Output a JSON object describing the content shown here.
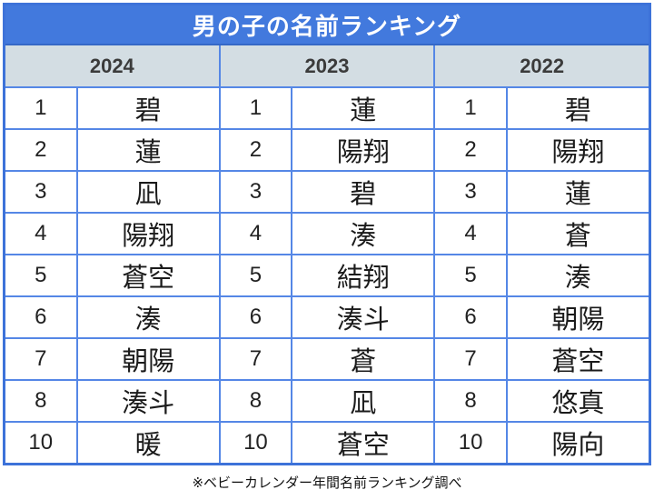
{
  "title": "男の子の名前ランキング",
  "footer": "※ベビーカレンダー年間名前ランキング調べ",
  "colors": {
    "title_bg": "#4279dd",
    "grid_line": "#5587e6",
    "outer_border": "#3d72d9",
    "header_bg": "#d3dde3",
    "title_text": "#ffffff",
    "year_text": "#3b3b3b",
    "name_text": "#1b1b1b"
  },
  "columns": [
    {
      "year": "2024",
      "rows": [
        {
          "rank": "1",
          "name": "碧"
        },
        {
          "rank": "2",
          "name": "蓮"
        },
        {
          "rank": "3",
          "name": "凪"
        },
        {
          "rank": "4",
          "name": "陽翔"
        },
        {
          "rank": "5",
          "name": "蒼空"
        },
        {
          "rank": "6",
          "name": "湊"
        },
        {
          "rank": "7",
          "name": "朝陽"
        },
        {
          "rank": "8",
          "name": "湊斗"
        },
        {
          "rank": "10",
          "name": "暖"
        }
      ]
    },
    {
      "year": "2023",
      "rows": [
        {
          "rank": "1",
          "name": "蓮"
        },
        {
          "rank": "2",
          "name": "陽翔"
        },
        {
          "rank": "3",
          "name": "碧"
        },
        {
          "rank": "4",
          "name": "湊"
        },
        {
          "rank": "5",
          "name": "結翔"
        },
        {
          "rank": "6",
          "name": "湊斗"
        },
        {
          "rank": "7",
          "name": "蒼"
        },
        {
          "rank": "8",
          "name": "凪"
        },
        {
          "rank": "10",
          "name": "蒼空"
        }
      ]
    },
    {
      "year": "2022",
      "rows": [
        {
          "rank": "1",
          "name": "碧"
        },
        {
          "rank": "2",
          "name": "陽翔"
        },
        {
          "rank": "3",
          "name": "蓮"
        },
        {
          "rank": "4",
          "name": "蒼"
        },
        {
          "rank": "5",
          "name": "湊"
        },
        {
          "rank": "6",
          "name": "朝陽"
        },
        {
          "rank": "7",
          "name": "蒼空"
        },
        {
          "rank": "8",
          "name": "悠真"
        },
        {
          "rank": "10",
          "name": "陽向"
        }
      ]
    }
  ],
  "chart_data": {
    "type": "table",
    "title": "男の子の名前ランキング",
    "columns": [
      "2024",
      "2023",
      "2022"
    ],
    "ranks": [
      "1",
      "2",
      "3",
      "4",
      "5",
      "6",
      "7",
      "8",
      "10"
    ],
    "series": [
      {
        "name": "2024",
        "values": [
          "碧",
          "蓮",
          "凪",
          "陽翔",
          "蒼空",
          "湊",
          "朝陽",
          "湊斗",
          "暖"
        ]
      },
      {
        "name": "2023",
        "values": [
          "蓮",
          "陽翔",
          "碧",
          "湊",
          "結翔",
          "湊斗",
          "蒼",
          "凪",
          "蒼空"
        ]
      },
      {
        "name": "2022",
        "values": [
          "碧",
          "陽翔",
          "蓮",
          "蒼",
          "湊",
          "朝陽",
          "蒼空",
          "悠真",
          "陽向"
        ]
      }
    ],
    "note": "※ベビーカレンダー年間名前ランキング調べ"
  }
}
